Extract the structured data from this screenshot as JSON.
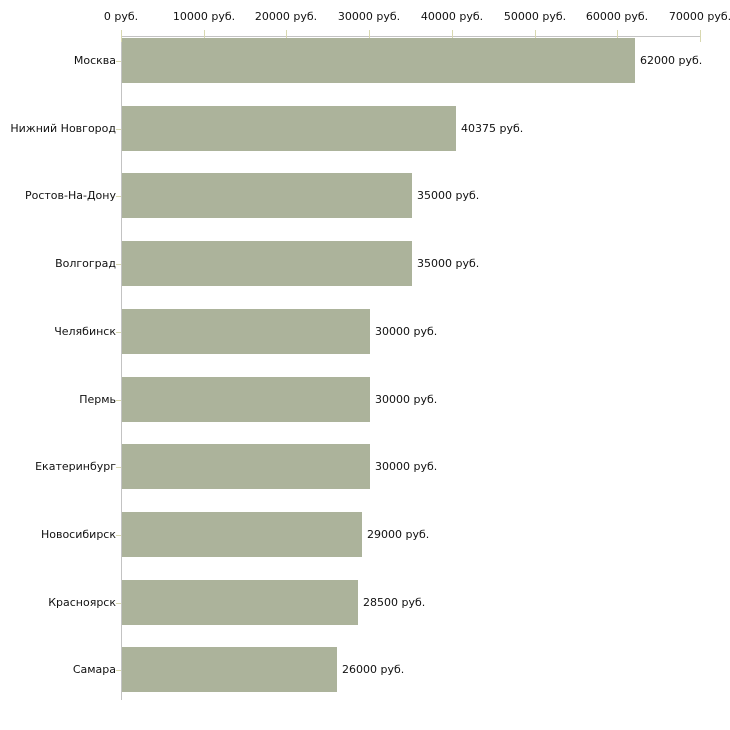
{
  "chart_data": {
    "type": "bar",
    "orientation": "horizontal",
    "title": "",
    "xlabel": "",
    "ylabel": "",
    "unit": "руб.",
    "categories": [
      "Москва",
      "Нижний Новгород",
      "Ростов-На-Дону",
      "Волгоград",
      "Челябинск",
      "Пермь",
      "Екатеринбург",
      "Новосибирск",
      "Красноярск",
      "Самара"
    ],
    "values": [
      62000,
      40375,
      35000,
      35000,
      30000,
      30000,
      30000,
      29000,
      28500,
      26000
    ],
    "value_labels": [
      "62000 руб.",
      "40375 руб.",
      "35000 руб.",
      "35000 руб.",
      "30000 руб.",
      "30000 руб.",
      "30000 руб.",
      "29000 руб.",
      "28500 руб.",
      "26000 руб."
    ],
    "x_ticks": [
      0,
      10000,
      20000,
      30000,
      40000,
      50000,
      60000,
      70000
    ],
    "x_tick_labels": [
      "0 руб.",
      "10000 руб.",
      "20000 руб.",
      "30000 руб.",
      "40000 руб.",
      "50000 руб.",
      "60000 руб.",
      "70000 руб."
    ],
    "xlim": [
      0,
      70000
    ],
    "grid": false,
    "legend": false,
    "colors": {
      "bar": "#acb39b",
      "axis_line": "#c3c3c3",
      "tick_mark": "#d8d8b0",
      "text": "#111111",
      "background": "#ffffff"
    }
  }
}
